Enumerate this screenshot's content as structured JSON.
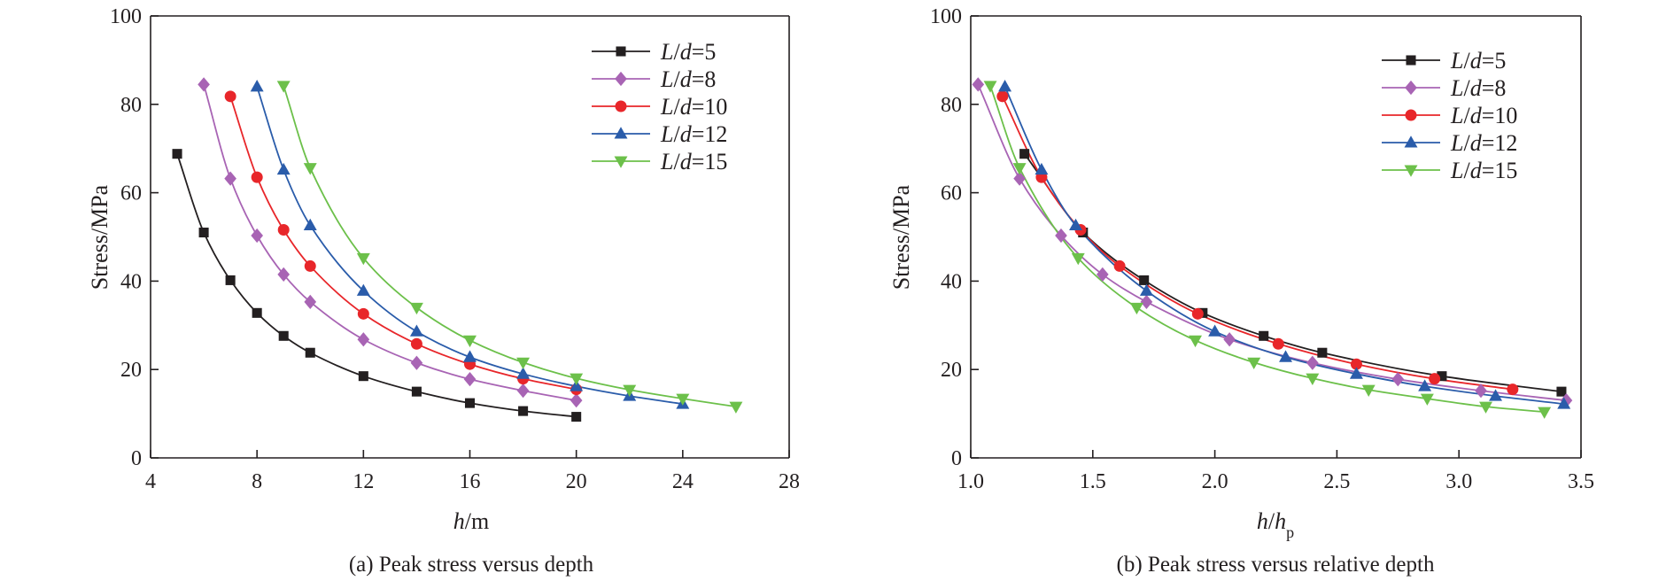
{
  "chart_data": [
    {
      "type": "line",
      "caption": "(a) Peak stress versus depth",
      "xlabel": {
        "italic": "h",
        "rest": "/m"
      },
      "ylabel": "Stress/MPa",
      "xlim": [
        4,
        28
      ],
      "ylim": [
        0,
        100
      ],
      "xticks": [
        "4",
        "8",
        "12",
        "16",
        "20",
        "24",
        "28"
      ],
      "yticks": [
        "0",
        "20",
        "40",
        "60",
        "80",
        "100"
      ],
      "legend_position": "top-right",
      "series": [
        {
          "name": "L/d=5",
          "label": {
            "a": "L",
            "b": "/",
            "c": "d",
            "d": "=5"
          },
          "color": "#231f20",
          "marker": "square",
          "x": [
            5,
            6,
            7,
            8,
            9,
            10,
            12,
            14,
            16,
            18,
            20
          ],
          "y": [
            68.8,
            51.0,
            40.2,
            32.8,
            27.6,
            23.8,
            18.5,
            15.0,
            12.4,
            10.6,
            9.3
          ]
        },
        {
          "name": "L/d=8",
          "label": {
            "a": "L",
            "b": "/",
            "c": "d",
            "d": "=8"
          },
          "color": "#a864b4",
          "marker": "diamond",
          "x": [
            6,
            7,
            8,
            9,
            10,
            12,
            14,
            16,
            18,
            20
          ],
          "y": [
            84.5,
            63.2,
            50.3,
            41.5,
            35.3,
            26.8,
            21.5,
            17.8,
            15.2,
            13.0
          ]
        },
        {
          "name": "L/d=10",
          "label": {
            "a": "L",
            "b": "/",
            "c": "d",
            "d": "=10"
          },
          "color": "#e8262a",
          "marker": "circle",
          "x": [
            7,
            8,
            9,
            10,
            12,
            14,
            16,
            18,
            20
          ],
          "y": [
            81.8,
            63.5,
            51.6,
            43.4,
            32.6,
            25.8,
            21.2,
            17.9,
            15.5
          ]
        },
        {
          "name": "L/d=12",
          "label": {
            "a": "L",
            "b": "/",
            "c": "d",
            "d": "=12"
          },
          "color": "#2a5caa",
          "marker": "triangle-up",
          "x": [
            8,
            9,
            10,
            12,
            14,
            16,
            18,
            20,
            22,
            24
          ],
          "y": [
            84.0,
            65.2,
            52.6,
            37.8,
            28.6,
            22.8,
            19.0,
            16.2,
            14.0,
            12.2
          ]
        },
        {
          "name": "L/d=15",
          "label": {
            "a": "L",
            "b": "/",
            "c": "d",
            "d": "=15"
          },
          "color": "#6cc04a",
          "marker": "triangle-down",
          "x": [
            9,
            10,
            12,
            14,
            16,
            18,
            20,
            22,
            24,
            26
          ],
          "y": [
            84.2,
            65.6,
            45.2,
            34.0,
            26.6,
            21.6,
            18.0,
            15.4,
            13.4,
            11.6
          ]
        }
      ]
    },
    {
      "type": "line",
      "caption": "(b) Peak stress versus relative depth",
      "xlabel": {
        "italic": "h",
        "rest": "/",
        "italic2": "h",
        "sub": "p"
      },
      "ylabel": "Stress/MPa",
      "xlim": [
        1.0,
        3.5
      ],
      "ylim": [
        0,
        100
      ],
      "xticks": [
        "1.0",
        "1.5",
        "2.0",
        "2.5",
        "3.0",
        "3.5"
      ],
      "yticks": [
        "0",
        "20",
        "40",
        "60",
        "80",
        "100"
      ],
      "legend_position": "top-right",
      "series": [
        {
          "name": "L/d=5",
          "label": {
            "a": "L",
            "b": "/",
            "c": "d",
            "d": "=5"
          },
          "color": "#231f20",
          "marker": "square",
          "x": [
            1.22,
            1.46,
            1.71,
            1.95,
            2.2,
            2.44,
            2.93,
            3.42
          ],
          "y": [
            68.8,
            51.0,
            40.2,
            32.8,
            27.6,
            23.8,
            18.5,
            15.0
          ]
        },
        {
          "name": "L/d=8",
          "label": {
            "a": "L",
            "b": "/",
            "c": "d",
            "d": "=8"
          },
          "color": "#a864b4",
          "marker": "diamond",
          "x": [
            1.03,
            1.2,
            1.37,
            1.54,
            1.72,
            2.06,
            2.4,
            2.75,
            3.09,
            3.44
          ],
          "y": [
            84.5,
            63.2,
            50.3,
            41.5,
            35.3,
            26.8,
            21.5,
            17.8,
            15.2,
            13.0
          ]
        },
        {
          "name": "L/d=10",
          "label": {
            "a": "L",
            "b": "/",
            "c": "d",
            "d": "=10"
          },
          "color": "#e8262a",
          "marker": "circle",
          "x": [
            1.13,
            1.29,
            1.45,
            1.61,
            1.93,
            2.26,
            2.58,
            2.9,
            3.22
          ],
          "y": [
            81.8,
            63.5,
            51.6,
            43.4,
            32.6,
            25.8,
            21.2,
            17.9,
            15.5
          ]
        },
        {
          "name": "L/d=12",
          "label": {
            "a": "L",
            "b": "/",
            "c": "d",
            "d": "=12"
          },
          "color": "#2a5caa",
          "marker": "triangle-up",
          "x": [
            1.14,
            1.29,
            1.43,
            1.72,
            2.0,
            2.29,
            2.58,
            2.86,
            3.15,
            3.43
          ],
          "y": [
            84.0,
            65.2,
            52.6,
            37.8,
            28.6,
            22.8,
            19.0,
            16.2,
            14.0,
            12.2
          ]
        },
        {
          "name": "L/d=15",
          "label": {
            "a": "L",
            "b": "/",
            "c": "d",
            "d": "=15"
          },
          "color": "#6cc04a",
          "marker": "triangle-down",
          "x": [
            1.08,
            1.2,
            1.44,
            1.68,
            1.92,
            2.16,
            2.4,
            2.63,
            2.87,
            3.11,
            3.35
          ],
          "y": [
            84.2,
            65.6,
            45.2,
            34.0,
            26.6,
            21.6,
            18.0,
            15.4,
            13.4,
            11.6,
            10.4
          ]
        }
      ]
    }
  ]
}
